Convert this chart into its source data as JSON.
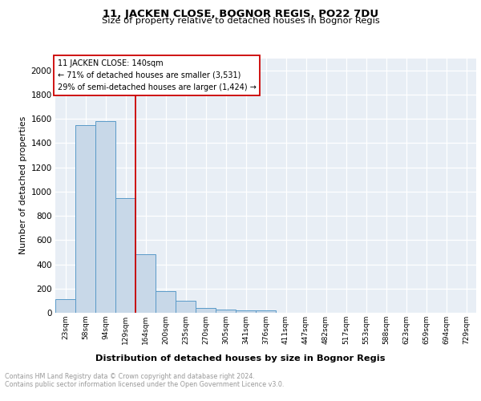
{
  "title": "11, JACKEN CLOSE, BOGNOR REGIS, PO22 7DU",
  "subtitle": "Size of property relative to detached houses in Bognor Regis",
  "xlabel": "Distribution of detached houses by size in Bognor Regis",
  "ylabel": "Number of detached properties",
  "bar_labels": [
    "23sqm",
    "58sqm",
    "94sqm",
    "129sqm",
    "164sqm",
    "200sqm",
    "235sqm",
    "270sqm",
    "305sqm",
    "341sqm",
    "376sqm",
    "411sqm",
    "447sqm",
    "482sqm",
    "517sqm",
    "553sqm",
    "588sqm",
    "623sqm",
    "659sqm",
    "694sqm",
    "729sqm"
  ],
  "bar_values": [
    110,
    1545,
    1580,
    945,
    485,
    180,
    100,
    38,
    27,
    18,
    18,
    0,
    0,
    0,
    0,
    0,
    0,
    0,
    0,
    0,
    0
  ],
  "bar_color": "#c8d8e8",
  "bar_edge_color": "#5a9ac8",
  "annotation_line1": "11 JACKEN CLOSE: 140sqm",
  "annotation_line2": "← 71% of detached houses are smaller (3,531)",
  "annotation_line3": "29% of semi-detached houses are larger (1,424) →",
  "vline_x": 3.5,
  "vline_color": "#cc0000",
  "ylim": [
    0,
    2100
  ],
  "yticks": [
    0,
    200,
    400,
    600,
    800,
    1000,
    1200,
    1400,
    1600,
    1800,
    2000
  ],
  "plot_bg_color": "#e8eef5",
  "grid_color": "#ffffff",
  "footer_text": "Contains HM Land Registry data © Crown copyright and database right 2024.\nContains public sector information licensed under the Open Government Licence v3.0."
}
